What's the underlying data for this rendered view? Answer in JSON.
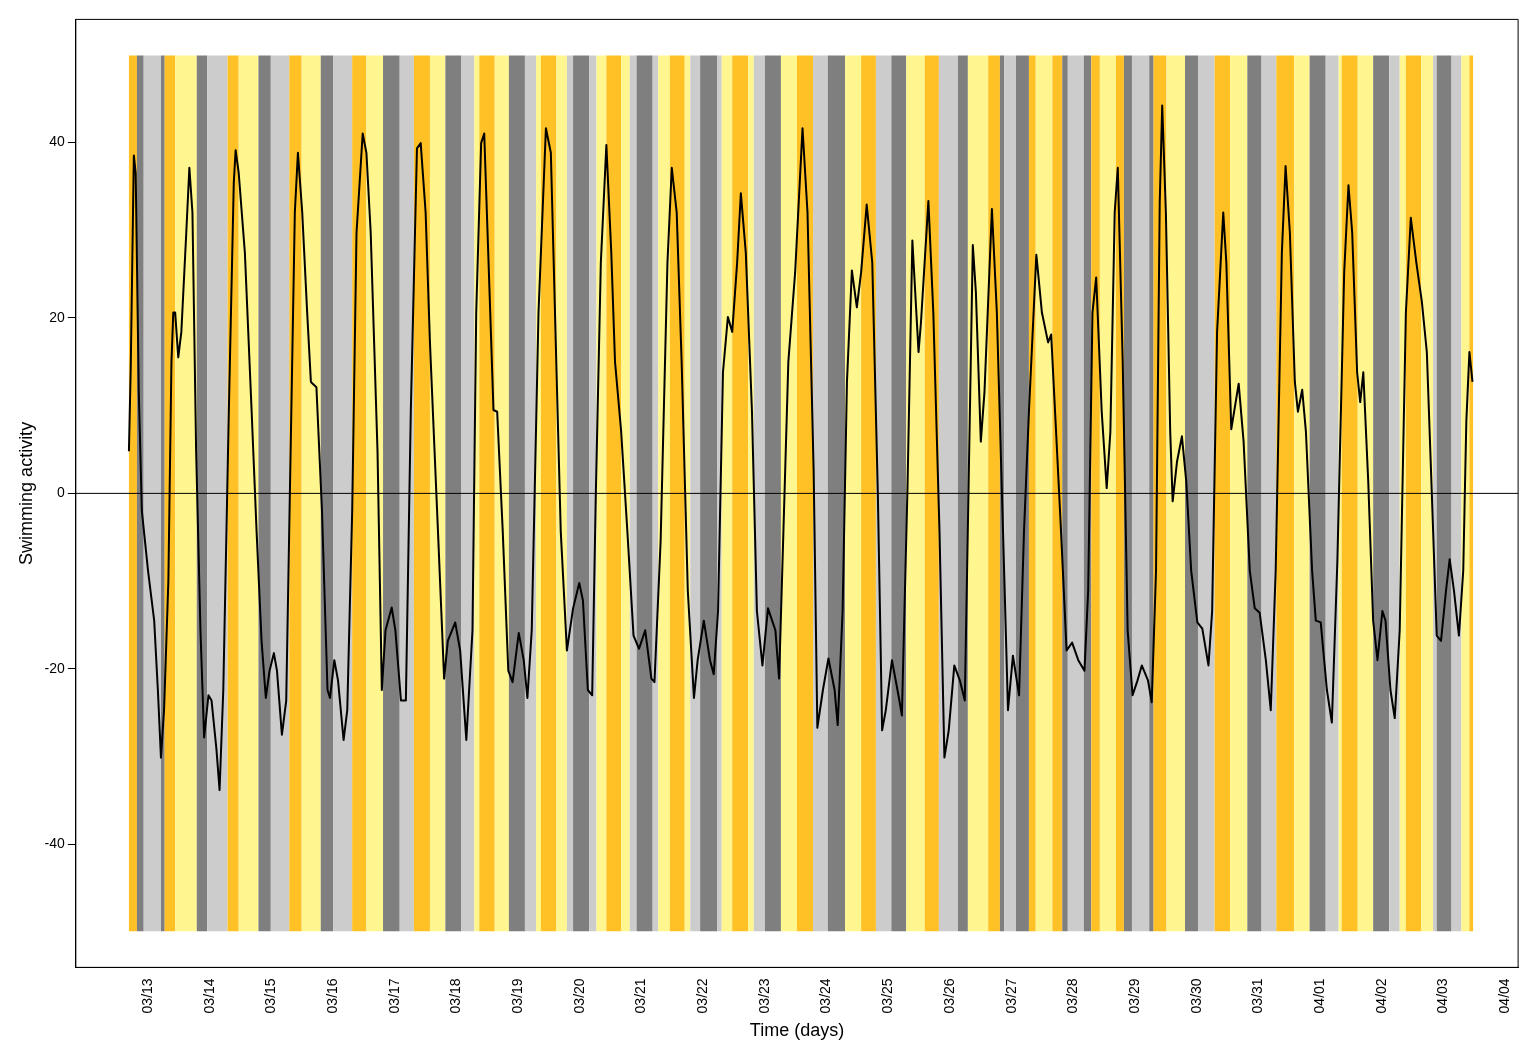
{
  "chart_data": {
    "type": "line",
    "xlabel": "Time (days)",
    "ylabel": "Swimming activity",
    "xlim": [
      "--03-11T19:55",
      "--04-04T05:02"
    ],
    "ylim": [
      -54,
      54
    ],
    "xticks": [
      {
        "value": "--03-13",
        "label": "03/13"
      },
      {
        "value": "--03-14",
        "label": "03/14"
      },
      {
        "value": "--03-15",
        "label": "03/15"
      },
      {
        "value": "--03-16",
        "label": "03/16"
      },
      {
        "value": "--03-17",
        "label": "03/17"
      },
      {
        "value": "--03-18",
        "label": "03/18"
      },
      {
        "value": "--03-19",
        "label": "03/19"
      },
      {
        "value": "--03-20",
        "label": "03/20"
      },
      {
        "value": "--03-21",
        "label": "03/21"
      },
      {
        "value": "--03-22",
        "label": "03/22"
      },
      {
        "value": "--03-23",
        "label": "03/23"
      },
      {
        "value": "--03-24",
        "label": "03/24"
      },
      {
        "value": "--03-25",
        "label": "03/25"
      },
      {
        "value": "--03-26",
        "label": "03/26"
      },
      {
        "value": "--03-27",
        "label": "03/27"
      },
      {
        "value": "--03-28",
        "label": "03/28"
      },
      {
        "value": "--03-29",
        "label": "03/29"
      },
      {
        "value": "--03-30",
        "label": "03/30"
      },
      {
        "value": "--03-31",
        "label": "03/31"
      },
      {
        "value": "--04-01",
        "label": "04/01"
      },
      {
        "value": "--04-02",
        "label": "04/02"
      },
      {
        "value": "--04-03",
        "label": "04/03"
      },
      {
        "value": "--04-04",
        "label": "04/04"
      }
    ],
    "yticks": [
      -40,
      -20,
      0,
      20,
      40
    ],
    "grid": false,
    "legend": false,
    "marker": "none",
    "line_style": "solid",
    "ref_lines": [
      {
        "axis": "y",
        "value": 0,
        "color": "#000000"
      }
    ],
    "bands": [
      {
        "axis": "x",
        "from": "--03-12T16:34",
        "to": "--03-12T19:41",
        "color": "#ffc125"
      },
      {
        "axis": "x",
        "from": "--03-12T19:41",
        "to": "--03-12T22:19",
        "color": "#7f7f7f"
      },
      {
        "axis": "x",
        "from": "--03-12T22:19",
        "to": "--03-13T05:02",
        "color": "#cccccc"
      },
      {
        "axis": "x",
        "from": "--03-13T05:02",
        "to": "--03-13T06:29",
        "color": "#7f7f7f"
      },
      {
        "axis": "x",
        "from": "--03-13T06:29",
        "to": "--03-13T10:34",
        "color": "#ffc125"
      },
      {
        "axis": "x",
        "from": "--03-13T10:34",
        "to": "--03-13T18:58",
        "color": "#fff68f"
      },
      {
        "axis": "x",
        "from": "--03-13T18:58",
        "to": "--03-13T23:02",
        "color": "#7f7f7f"
      },
      {
        "axis": "x",
        "from": "--03-13T23:02",
        "to": "--03-14T06:58",
        "color": "#cccccc"
      },
      {
        "axis": "x",
        "from": "--03-14T06:58",
        "to": "--03-14T11:17",
        "color": "#ffc125"
      },
      {
        "axis": "x",
        "from": "--03-14T11:17",
        "to": "--03-14T18:58",
        "color": "#fff68f"
      },
      {
        "axis": "x",
        "from": "--03-14T18:58",
        "to": "--03-14T23:46",
        "color": "#7f7f7f"
      },
      {
        "axis": "x",
        "from": "--03-14T23:46",
        "to": "--03-15T06:58",
        "color": "#cccccc"
      },
      {
        "axis": "x",
        "from": "--03-15T06:58",
        "to": "--03-15T11:46",
        "color": "#ffc125"
      },
      {
        "axis": "x",
        "from": "--03-15T11:46",
        "to": "--03-15T19:12",
        "color": "#fff68f"
      },
      {
        "axis": "x",
        "from": "--03-15T19:12",
        "to": "--03-16T00:00",
        "color": "#7f7f7f"
      },
      {
        "axis": "x",
        "from": "--03-16T00:00",
        "to": "--03-16T07:26",
        "color": "#cccccc"
      },
      {
        "axis": "x",
        "from": "--03-16T07:26",
        "to": "--03-16T12:58",
        "color": "#ffc125"
      },
      {
        "axis": "x",
        "from": "--03-16T12:58",
        "to": "--03-16T19:26",
        "color": "#fff68f"
      },
      {
        "axis": "x",
        "from": "--03-16T19:26",
        "to": "--03-17T01:55",
        "color": "#7f7f7f"
      },
      {
        "axis": "x",
        "from": "--03-17T01:55",
        "to": "--03-17T07:26",
        "color": "#cccccc"
      },
      {
        "axis": "x",
        "from": "--03-17T07:26",
        "to": "--03-17T13:41",
        "color": "#ffc125"
      },
      {
        "axis": "x",
        "from": "--03-17T13:41",
        "to": "--03-17T19:41",
        "color": "#fff68f"
      },
      {
        "axis": "x",
        "from": "--03-17T19:41",
        "to": "--03-18T01:55",
        "color": "#7f7f7f"
      },
      {
        "axis": "x",
        "from": "--03-18T01:55",
        "to": "--03-18T06:58",
        "color": "#cccccc"
      },
      {
        "axis": "x",
        "from": "--03-18T06:58",
        "to": "--03-18T08:53",
        "color": "#fff68f"
      },
      {
        "axis": "x",
        "from": "--03-18T08:53",
        "to": "--03-18T14:53",
        "color": "#ffc125"
      },
      {
        "axis": "x",
        "from": "--03-18T14:53",
        "to": "--03-18T20:24",
        "color": "#fff68f"
      },
      {
        "axis": "x",
        "from": "--03-18T20:24",
        "to": "--03-19T02:38",
        "color": "#7f7f7f"
      },
      {
        "axis": "x",
        "from": "--03-19T02:38",
        "to": "--03-19T06:58",
        "color": "#cccccc"
      },
      {
        "axis": "x",
        "from": "--03-19T06:58",
        "to": "--03-19T08:53",
        "color": "#fff68f"
      },
      {
        "axis": "x",
        "from": "--03-19T08:53",
        "to": "--03-19T14:53",
        "color": "#ffc125"
      },
      {
        "axis": "x",
        "from": "--03-19T14:53",
        "to": "--03-19T18:58",
        "color": "#fff68f"
      },
      {
        "axis": "x",
        "from": "--03-19T18:58",
        "to": "--03-19T21:22",
        "color": "#cccccc"
      },
      {
        "axis": "x",
        "from": "--03-19T21:22",
        "to": "--03-20T03:36",
        "color": "#7f7f7f"
      },
      {
        "axis": "x",
        "from": "--03-20T03:36",
        "to": "--03-20T06:29",
        "color": "#cccccc"
      },
      {
        "axis": "x",
        "from": "--03-20T06:29",
        "to": "--03-20T10:19",
        "color": "#fff68f"
      },
      {
        "axis": "x",
        "from": "--03-20T10:19",
        "to": "--03-20T16:05",
        "color": "#ffc125"
      },
      {
        "axis": "x",
        "from": "--03-20T16:05",
        "to": "--03-20T19:26",
        "color": "#fff68f"
      },
      {
        "axis": "x",
        "from": "--03-20T19:26",
        "to": "--03-20T22:05",
        "color": "#cccccc"
      },
      {
        "axis": "x",
        "from": "--03-20T22:05",
        "to": "--03-21T04:19",
        "color": "#7f7f7f"
      },
      {
        "axis": "x",
        "from": "--03-21T04:19",
        "to": "--03-21T06:29",
        "color": "#cccccc"
      },
      {
        "axis": "x",
        "from": "--03-21T06:29",
        "to": "--03-21T11:02",
        "color": "#fff68f"
      },
      {
        "axis": "x",
        "from": "--03-21T11:02",
        "to": "--03-21T16:48",
        "color": "#ffc125"
      },
      {
        "axis": "x",
        "from": "--03-21T16:48",
        "to": "--03-21T18:58",
        "color": "#fff68f"
      },
      {
        "axis": "x",
        "from": "--03-21T18:58",
        "to": "--03-21T22:48",
        "color": "#cccccc"
      },
      {
        "axis": "x",
        "from": "--03-21T22:48",
        "to": "--03-22T05:31",
        "color": "#7f7f7f"
      },
      {
        "axis": "x",
        "from": "--03-22T05:31",
        "to": "--03-22T07:12",
        "color": "#cccccc"
      },
      {
        "axis": "x",
        "from": "--03-22T07:12",
        "to": "--03-22T11:17",
        "color": "#fff68f"
      },
      {
        "axis": "x",
        "from": "--03-22T11:17",
        "to": "--03-22T17:31",
        "color": "#ffc125"
      },
      {
        "axis": "x",
        "from": "--03-22T17:31",
        "to": "--03-22T19:41",
        "color": "#fff68f"
      },
      {
        "axis": "x",
        "from": "--03-22T19:41",
        "to": "--03-23T00:00",
        "color": "#cccccc"
      },
      {
        "axis": "x",
        "from": "--03-23T00:00",
        "to": "--03-23T06:14",
        "color": "#7f7f7f"
      },
      {
        "axis": "x",
        "from": "--03-23T06:14",
        "to": "--03-23T12:29",
        "color": "#fff68f"
      },
      {
        "axis": "x",
        "from": "--03-23T12:29",
        "to": "--03-23T18:43",
        "color": "#ffc125"
      },
      {
        "axis": "x",
        "from": "--03-23T18:43",
        "to": "--03-24T00:29",
        "color": "#cccccc"
      },
      {
        "axis": "x",
        "from": "--03-24T00:29",
        "to": "--03-24T07:12",
        "color": "#7f7f7f"
      },
      {
        "axis": "x",
        "from": "--03-24T07:12",
        "to": "--03-24T13:26",
        "color": "#fff68f"
      },
      {
        "axis": "x",
        "from": "--03-24T13:26",
        "to": "--03-24T19:12",
        "color": "#ffc125"
      },
      {
        "axis": "x",
        "from": "--03-24T19:12",
        "to": "--03-25T01:12",
        "color": "#cccccc"
      },
      {
        "axis": "x",
        "from": "--03-25T01:12",
        "to": "--03-25T06:58",
        "color": "#7f7f7f"
      },
      {
        "axis": "x",
        "from": "--03-25T06:58",
        "to": "--03-25T14:10",
        "color": "#fff68f"
      },
      {
        "axis": "x",
        "from": "--03-25T14:10",
        "to": "--03-25T19:41",
        "color": "#ffc125"
      },
      {
        "axis": "x",
        "from": "--03-25T19:41",
        "to": "--03-26T03:07",
        "color": "#cccccc"
      },
      {
        "axis": "x",
        "from": "--03-26T03:07",
        "to": "--03-26T06:58",
        "color": "#7f7f7f"
      },
      {
        "axis": "x",
        "from": "--03-26T06:58",
        "to": "--03-26T14:53",
        "color": "#fff68f"
      },
      {
        "axis": "x",
        "from": "--03-26T14:53",
        "to": "--03-26T19:26",
        "color": "#ffc125"
      },
      {
        "axis": "x",
        "from": "--03-26T19:26",
        "to": "--03-26T21:07",
        "color": "#7f7f7f"
      },
      {
        "axis": "x",
        "from": "--03-26T21:07",
        "to": "--03-27T01:41",
        "color": "#cccccc"
      },
      {
        "axis": "x",
        "from": "--03-27T01:41",
        "to": "--03-27T06:43",
        "color": "#7f7f7f"
      },
      {
        "axis": "x",
        "from": "--03-27T06:43",
        "to": "--03-27T09:22",
        "color": "#ffc125"
      },
      {
        "axis": "x",
        "from": "--03-27T09:22",
        "to": "--03-27T15:50",
        "color": "#fff68f"
      },
      {
        "axis": "x",
        "from": "--03-27T15:50",
        "to": "--03-27T19:41",
        "color": "#ffc125"
      },
      {
        "axis": "x",
        "from": "--03-27T19:41",
        "to": "--03-27T21:50",
        "color": "#7f7f7f"
      },
      {
        "axis": "x",
        "from": "--03-27T21:50",
        "to": "--03-28T04:05",
        "color": "#cccccc"
      },
      {
        "axis": "x",
        "from": "--03-28T04:05",
        "to": "--03-28T06:58",
        "color": "#7f7f7f"
      },
      {
        "axis": "x",
        "from": "--03-28T06:58",
        "to": "--03-28T10:19",
        "color": "#ffc125"
      },
      {
        "axis": "x",
        "from": "--03-28T10:19",
        "to": "--03-28T16:34",
        "color": "#fff68f"
      },
      {
        "axis": "x",
        "from": "--03-28T16:34",
        "to": "--03-28T19:41",
        "color": "#ffc125"
      },
      {
        "axis": "x",
        "from": "--03-28T19:41",
        "to": "--03-28T22:48",
        "color": "#7f7f7f"
      },
      {
        "axis": "x",
        "from": "--03-28T22:48",
        "to": "--03-29T05:31",
        "color": "#cccccc"
      },
      {
        "axis": "x",
        "from": "--03-29T05:31",
        "to": "--03-29T07:12",
        "color": "#7f7f7f"
      },
      {
        "axis": "x",
        "from": "--03-29T07:12",
        "to": "--03-29T12:14",
        "color": "#ffc125"
      },
      {
        "axis": "x",
        "from": "--03-29T12:14",
        "to": "--03-29T19:26",
        "color": "#fff68f"
      },
      {
        "axis": "x",
        "from": "--03-29T19:26",
        "to": "--03-30T00:29",
        "color": "#7f7f7f"
      },
      {
        "axis": "x",
        "from": "--03-30T00:29",
        "to": "--03-30T06:58",
        "color": "#cccccc"
      },
      {
        "axis": "x",
        "from": "--03-30T06:58",
        "to": "--03-30T12:58",
        "color": "#ffc125"
      },
      {
        "axis": "x",
        "from": "--03-30T12:58",
        "to": "--03-30T19:41",
        "color": "#fff68f"
      },
      {
        "axis": "x",
        "from": "--03-30T19:41",
        "to": "--03-31T01:12",
        "color": "#7f7f7f"
      },
      {
        "axis": "x",
        "from": "--03-31T01:12",
        "to": "--03-31T06:58",
        "color": "#cccccc"
      },
      {
        "axis": "x",
        "from": "--03-31T06:58",
        "to": "--03-31T13:55",
        "color": "#ffc125"
      },
      {
        "axis": "x",
        "from": "--03-31T13:55",
        "to": "--03-31T19:55",
        "color": "#fff68f"
      },
      {
        "axis": "x",
        "from": "--03-31T19:55",
        "to": "--04-01T02:10",
        "color": "#7f7f7f"
      },
      {
        "axis": "x",
        "from": "--04-01T02:10",
        "to": "--04-01T07:12",
        "color": "#cccccc"
      },
      {
        "axis": "x",
        "from": "--04-01T07:12",
        "to": "--04-01T08:24",
        "color": "#fff68f"
      },
      {
        "axis": "x",
        "from": "--04-01T08:24",
        "to": "--04-01T14:38",
        "color": "#ffc125"
      },
      {
        "axis": "x",
        "from": "--04-01T14:38",
        "to": "--04-01T20:38",
        "color": "#fff68f"
      },
      {
        "axis": "x",
        "from": "--04-01T20:38",
        "to": "--04-02T02:53",
        "color": "#7f7f7f"
      },
      {
        "axis": "x",
        "from": "--04-02T02:53",
        "to": "--04-02T06:58",
        "color": "#cccccc"
      },
      {
        "axis": "x",
        "from": "--04-02T06:58",
        "to": "--04-02T09:22",
        "color": "#fff68f"
      },
      {
        "axis": "x",
        "from": "--04-02T09:22",
        "to": "--04-02T15:22",
        "color": "#ffc125"
      },
      {
        "axis": "x",
        "from": "--04-02T15:22",
        "to": "--04-02T19:55",
        "color": "#fff68f"
      },
      {
        "axis": "x",
        "from": "--04-02T19:55",
        "to": "--04-02T21:22",
        "color": "#cccccc"
      },
      {
        "axis": "x",
        "from": "--04-02T21:22",
        "to": "--04-03T03:07",
        "color": "#7f7f7f"
      },
      {
        "axis": "x",
        "from": "--04-03T03:07",
        "to": "--04-03T06:58",
        "color": "#cccccc"
      },
      {
        "axis": "x",
        "from": "--04-03T06:58",
        "to": "--04-03T10:05",
        "color": "#fff68f"
      },
      {
        "axis": "x",
        "from": "--04-03T10:05",
        "to": "--04-03T11:31",
        "color": "#ffc125"
      }
    ],
    "series": [
      {
        "color": "#000000",
        "x": [
          "--03-12T16:34",
          "--03-12T17:17",
          "--03-12T18:29",
          "--03-12T19:12",
          "--03-12T20:24",
          "--03-12T21:36",
          "--03-13T00:00",
          "--03-13T02:24",
          "--03-13T03:50",
          "--03-13T05:02",
          "--03-13T06:14",
          "--03-13T07:55",
          "--03-13T09:07",
          "--03-13T09:50",
          "--03-13T10:34",
          "--03-13T11:46",
          "--03-13T12:58",
          "--03-13T14:53",
          "--03-13T16:05",
          "--03-13T17:17",
          "--03-13T18:43",
          "--03-13T20:24",
          "--03-13T21:50",
          "--03-13T23:31",
          "--03-14T00:43",
          "--03-14T02:38",
          "--03-14T03:50",
          "--03-14T05:17",
          "--03-14T07:26",
          "--03-14T09:22",
          "--03-14T10:05",
          "--03-14T11:17",
          "--03-14T13:41",
          "--03-14T16:19",
          "--03-14T18:14",
          "--03-14T20:10",
          "--03-14T21:50",
          "--03-14T23:17",
          "--03-15T00:58",
          "--03-15T02:10",
          "--03-15T04:05",
          "--03-15T05:46",
          "--03-15T07:12",
          "--03-15T09:07",
          "--03-15T10:19",
          "--03-15T12:00",
          "--03-15T13:55",
          "--03-15T15:22",
          "--03-15T17:31",
          "--03-15T19:41",
          "--03-15T21:50",
          "--03-15T22:48",
          "--03-16T00:29",
          "--03-16T01:55",
          "--03-16T04:05",
          "--03-16T05:31",
          "--03-16T07:26",
          "--03-16T09:07",
          "--03-16T11:31",
          "--03-16T12:58",
          "--03-16T14:38",
          "--03-16T17:17",
          "--03-16T18:58",
          "--03-16T20:24",
          "--03-16T22:48",
          "--03-17T00:14",
          "--03-17T02:24",
          "--03-17T04:19",
          "--03-17T06:14",
          "--03-17T08:38",
          "--03-17T10:05",
          "--03-17T12:00",
          "--03-17T13:41",
          "--03-17T16:48",
          "--03-17T19:12",
          "--03-17T20:38",
          "--03-17T23:31",
          "--03-18T01:26",
          "--03-18T03:50",
          "--03-18T06:14",
          "--03-18T07:41",
          "--03-18T09:36",
          "--03-18T10:48",
          "--03-18T12:29",
          "--03-18T14:24",
          "--03-18T15:50",
          "--03-18T18:00",
          "--03-18T20:10",
          "--03-18T21:50",
          "--03-19T00:14",
          "--03-19T02:10",
          "--03-19T03:36",
          "--03-19T05:17",
          "--03-19T07:55",
          "--03-19T10:48",
          "--03-19T12:43",
          "--03-19T14:38",
          "--03-19T16:34",
          "--03-19T18:58",
          "--03-19T21:22",
          "--03-19T23:46",
          "--03-20T01:12",
          "--03-20T03:07",
          "--03-20T04:48",
          "--03-20T06:14",
          "--03-20T08:10",
          "--03-20T10:19",
          "--03-20T12:14",
          "--03-20T13:41",
          "--03-20T16:05",
          "--03-20T18:29",
          "--03-20T20:53",
          "--03-20T23:02",
          "--03-21T01:26",
          "--03-21T03:50",
          "--03-21T05:02",
          "--03-21T07:26",
          "--03-21T10:05",
          "--03-21T11:46",
          "--03-21T13:41",
          "--03-21T15:36",
          "--03-21T18:00",
          "--03-21T20:24",
          "--03-21T21:50",
          "--03-22T00:14",
          "--03-22T02:38",
          "--03-22T04:05",
          "--03-22T05:46",
          "--03-22T07:41",
          "--03-22T09:36",
          "--03-22T11:17",
          "--03-22T13:12",
          "--03-22T14:38",
          "--03-22T16:34",
          "--03-22T18:58",
          "--03-22T20:53",
          "--03-22T23:02",
          "--03-23T01:12",
          "--03-23T04:05",
          "--03-23T05:31",
          "--03-23T07:12",
          "--03-23T09:07",
          "--03-23T11:46",
          "--03-23T14:38",
          "--03-23T16:34",
          "--03-23T18:58",
          "--03-23T20:24",
          "--03-23T22:34",
          "--03-24T00:43",
          "--03-24T03:07",
          "--03-24T04:19",
          "--03-24T06:14",
          "--03-24T07:55",
          "--03-24T09:50",
          "--03-24T11:46",
          "--03-24T13:26",
          "--03-24T15:36",
          "--03-24T17:46",
          "--03-24T19:55",
          "--03-24T21:36",
          "--03-24T23:02",
          "--03-25T01:26",
          "--03-25T04:19",
          "--03-25T05:17",
          "--03-25T07:26",
          "--03-25T09:22",
          "--03-25T11:46",
          "--03-25T12:43",
          "--03-25T15:36",
          "--03-25T17:31",
          "--03-25T19:55",
          "--03-25T21:50",
          "--03-25T23:31",
          "--03-26T01:41",
          "--03-26T03:50",
          "--03-26T05:46",
          "--03-26T07:12",
          "--03-26T08:53",
          "--03-26T10:05",
          "--03-26T12:00",
          "--03-26T13:26",
          "--03-26T16:19",
          "--03-26T18:14",
          "--03-26T20:38",
          "--03-26T22:34",
          "--03-27T00:29",
          "--03-27T02:53",
          "--03-27T04:48",
          "--03-27T06:43",
          "--03-27T09:36",
          "--03-27T11:46",
          "--03-27T14:10",
          "--03-27T15:22",
          "--03-27T17:17",
          "--03-27T19:12",
          "--03-27T21:22",
          "--03-27T23:31",
          "--03-28T01:55",
          "--03-28T04:19",
          "--03-28T05:46",
          "--03-28T07:26",
          "--03-28T08:53",
          "--03-28T11:02",
          "--03-28T12:58",
          "--03-28T14:24",
          "--03-28T16:05",
          "--03-28T17:17",
          "--03-28T19:12",
          "--03-28T21:07",
          "--03-28T23:02",
          "--03-29T00:58",
          "--03-29T02:38",
          "--03-29T05:02",
          "--03-29T06:29",
          "--03-29T08:10",
          "--03-29T09:36",
          "--03-29T10:34",
          "--03-29T12:00",
          "--03-29T13:41",
          "--03-29T14:38",
          "--03-29T16:19",
          "--03-29T18:14",
          "--03-29T19:55",
          "--03-29T21:50",
          "--03-30T00:14",
          "--03-30T02:10",
          "--03-30T04:34",
          "--03-30T06:00",
          "--03-30T07:55",
          "--03-30T10:19",
          "--03-30T11:31",
          "--03-30T13:26",
          "--03-30T16:19",
          "--03-30T18:14",
          "--03-30T20:38",
          "--03-30T22:34",
          "--03-31T00:29",
          "--03-31T02:53",
          "--03-31T04:48",
          "--03-31T06:43",
          "--03-31T09:07",
          "--03-31T10:34",
          "--03-31T12:14",
          "--03-31T14:10",
          "--03-31T15:22",
          "--03-31T17:02",
          "--03-31T18:29",
          "--03-31T20:53",
          "--03-31T22:19",
          "--04-01T00:14",
          "--04-01T02:38",
          "--04-01T04:34",
          "--04-01T06:43",
          "--04-01T09:22",
          "--04-01T11:02",
          "--04-01T12:29",
          "--04-01T14:24",
          "--04-01T15:36",
          "--04-01T16:48",
          "--04-01T18:43",
          "--04-01T20:38",
          "--04-01T22:19",
          "--04-02T00:14",
          "--04-02T01:26",
          "--04-02T03:22",
          "--04-02T05:02",
          "--04-02T06:58",
          "--04-02T09:22",
          "--04-02T11:17",
          "--04-02T13:26",
          "--04-02T15:36",
          "--04-02T17:31",
          "--04-02T19:26",
          "--04-02T21:22",
          "--04-02T23:02",
          "--04-03T00:58",
          "--04-03T02:24",
          "--04-03T04:05",
          "--04-03T06:00",
          "--04-03T07:41",
          "--04-03T08:53",
          "--04-03T10:05",
          "--04-03T11:17"
        ],
        "values": [
          4.8,
          14.4,
          38.5,
          36.5,
          11.6,
          -2.0,
          -8.8,
          -14.5,
          -22.4,
          -30.1,
          -24.7,
          -10.0,
          15.0,
          20.6,
          20.6,
          15.5,
          18.4,
          29.7,
          37.1,
          32.0,
          4.8,
          -15.6,
          -27.8,
          -23.0,
          -23.6,
          -29.2,
          -33.8,
          -22.4,
          9.3,
          35.4,
          39.1,
          36.5,
          27.4,
          9.3,
          -4.3,
          -16.8,
          -23.3,
          -20.2,
          -18.2,
          -20.2,
          -27.5,
          -23.6,
          0.2,
          32.0,
          38.8,
          32.0,
          20.6,
          12.7,
          12.1,
          -2.0,
          -22.4,
          -23.3,
          -19.0,
          -21.3,
          -28.1,
          -24.7,
          -2.0,
          29.7,
          41.0,
          38.8,
          29.7,
          4.8,
          -22.4,
          -15.6,
          -13.0,
          -15.6,
          -23.6,
          -23.6,
          9.3,
          39.3,
          39.9,
          32.0,
          17.2,
          -4.3,
          -21.1,
          -16.8,
          -14.7,
          -17.9,
          -28.1,
          -15.6,
          20.6,
          39.9,
          41.0,
          26.3,
          9.5,
          9.3,
          -4.3,
          -20.2,
          -21.5,
          -15.9,
          -19.0,
          -23.3,
          -15.6,
          20.6,
          41.6,
          38.8,
          17.2,
          -4.3,
          -17.9,
          -13.1,
          -10.2,
          -12.2,
          -22.4,
          -23.0,
          0.2,
          26.3,
          39.7,
          27.4,
          15.0,
          7.0,
          -4.3,
          -16.2,
          -17.7,
          -15.6,
          -21.1,
          -21.5,
          -5.4,
          26.3,
          37.1,
          32.0,
          15.0,
          -11.1,
          -23.3,
          -19.0,
          -14.5,
          -19.0,
          -20.6,
          -13.4,
          13.8,
          20.1,
          18.4,
          26.3,
          34.2,
          27.4,
          9.3,
          -13.4,
          -19.6,
          -13.1,
          -15.6,
          -21.1,
          -4.3,
          15.0,
          25.2,
          41.6,
          32.0,
          2.5,
          -26.7,
          -22.4,
          -18.8,
          -22.4,
          -26.4,
          -13.4,
          12.7,
          25.4,
          21.2,
          25.2,
          32.9,
          26.3,
          0.2,
          -27.0,
          -24.7,
          -19.0,
          -23.6,
          -25.3,
          0.2,
          28.8,
          16.1,
          19.5,
          33.3,
          20.6,
          -4.3,
          -30.1,
          -27.0,
          -19.6,
          -21.3,
          -23.6,
          0.2,
          28.3,
          22.9,
          5.9,
          11.6,
          32.4,
          20.6,
          -4.3,
          -24.7,
          -18.5,
          -23.0,
          -4.3,
          9.3,
          27.2,
          20.6,
          17.2,
          18.1,
          7.0,
          -4.3,
          -17.9,
          -17.0,
          -19.0,
          -20.2,
          -11.1,
          20.6,
          24.6,
          9.3,
          0.6,
          7.0,
          32.0,
          37.1,
          15.0,
          -15.6,
          -23.0,
          -21.3,
          -19.6,
          -21.3,
          -23.8,
          -8.8,
          33.1,
          44.2,
          32.0,
          7.0,
          -0.9,
          3.6,
          6.5,
          1.4,
          -8.8,
          -14.7,
          -15.4,
          -19.6,
          -13.4,
          18.4,
          32.0,
          26.3,
          7.3,
          12.5,
          5.9,
          -8.8,
          -13.1,
          -13.6,
          -19.0,
          -24.7,
          -8.8,
          27.4,
          37.3,
          29.7,
          12.7,
          9.3,
          11.8,
          7.0,
          -8.8,
          -14.5,
          -14.7,
          -22.4,
          -26.1,
          -7.7,
          25.2,
          35.1,
          29.7,
          13.8,
          10.4,
          13.8,
          1.4,
          -14.5,
          -19.0,
          -13.4,
          -14.5,
          -22.4,
          -25.6,
          -15.6,
          20.6,
          31.4,
          26.3,
          21.8,
          16.1,
          0.2,
          -16.2,
          -16.8,
          -11.1,
          -7.5,
          -11.1,
          -16.2,
          -8.8,
          8.2,
          16.1,
          12.7
        ]
      }
    ]
  }
}
